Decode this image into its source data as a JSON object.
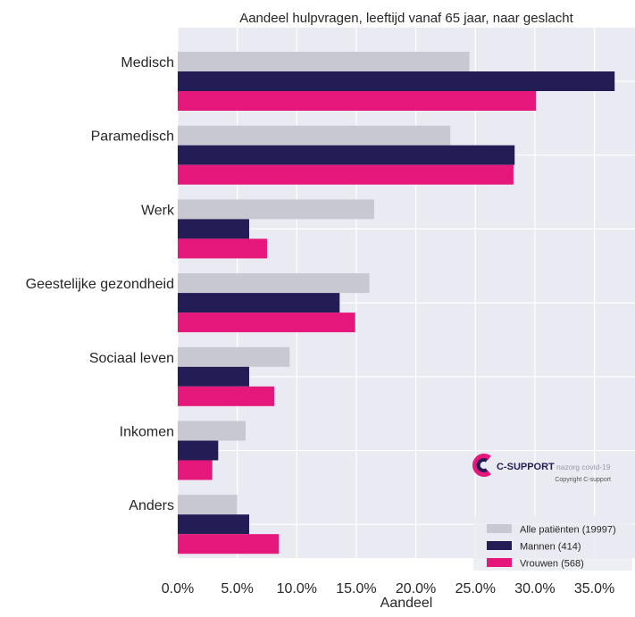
{
  "chart_data": {
    "type": "bar",
    "orientation": "horizontal",
    "title": "Aandeel hulpvragen, leeftijd vanaf 65 jaar, naar geslacht",
    "xlabel": "Aandeel",
    "ylabel": "",
    "xlim": [
      0,
      0.375
    ],
    "xticks": [
      "0.0%",
      "5.0%",
      "10.0%",
      "15.0%",
      "20.0%",
      "25.0%",
      "30.0%",
      "35.0%"
    ],
    "grid": true,
    "legend_position": "bottom-right",
    "categories": [
      "Medisch",
      "Paramedisch",
      "Werk",
      "Geestelijke gezondheid",
      "Sociaal leven",
      "Inkomen",
      "Anders"
    ],
    "series": [
      {
        "name": "Alle patiënten (19997)",
        "color": "#c8c8d2",
        "values": [
          0.245,
          0.229,
          0.165,
          0.161,
          0.094,
          0.057,
          0.05
        ]
      },
      {
        "name": "Mannen (414)",
        "color": "#241c55",
        "values": [
          0.367,
          0.283,
          0.06,
          0.136,
          0.06,
          0.034,
          0.06
        ]
      },
      {
        "name": "Vrouwen (568)",
        "color": "#e6177a",
        "values": [
          0.301,
          0.282,
          0.075,
          0.149,
          0.081,
          0.029,
          0.085
        ]
      }
    ]
  },
  "watermark": {
    "brand": "C-SUPPORT",
    "tagline": "nazorg covid-19",
    "copyright": "Copyright C-support"
  }
}
